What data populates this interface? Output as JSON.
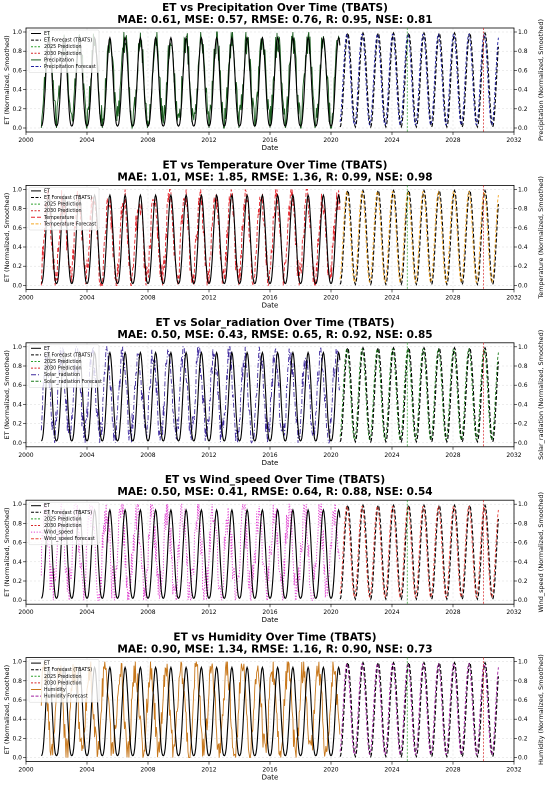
{
  "chart_data": [
    {
      "type": "line",
      "title": "ET vs Precipitation Over Time (TBATS)",
      "metrics": "MAE: 0.61, MSE: 0.57, RMSE: 0.76, R: 0.95, NSE: 0.81",
      "xlabel": "Date",
      "ylabel_left": "ET (Normalized, Smoothed)",
      "ylabel_right": "Precipitation (Normalized, Smoothed)",
      "xlim": [
        2000,
        2032
      ],
      "ylim": [
        0,
        1
      ],
      "x_ticks": [
        "2000",
        "2004",
        "2008",
        "2012",
        "2016",
        "2020",
        "2024",
        "2028",
        "2032"
      ],
      "y_ticks": [
        "0.0",
        "0.2",
        "0.4",
        "0.6",
        "0.8",
        "1.0"
      ],
      "legend_position": "top-left",
      "legend": [
        "ET",
        "ET Forecast (TBATS)",
        "2025 Prediction",
        "2030 Prediction",
        "Precipitation",
        "Precipitation Forecast"
      ],
      "driver_color": "#1b5e20",
      "driver_forecast_color": "#1f1fa0",
      "driver_style": "solid",
      "vlines": [
        {
          "x": 2025.0,
          "label": "2025 Prediction",
          "color": "#2ca02c"
        },
        {
          "x": 2030.0,
          "label": "2030 Prediction",
          "color": "#d62728"
        }
      ],
      "series": {
        "et_period_years": 1.0,
        "et_history_range": [
          2001,
          2020.6
        ],
        "forecast_range": [
          2020.6,
          2031
        ]
      }
    },
    {
      "type": "line",
      "title": "ET vs Temperature Over Time (TBATS)",
      "metrics": "MAE: 1.01, MSE: 1.85, RMSE: 1.36, R: 0.99, NSE: 0.98",
      "xlabel": "Date",
      "ylabel_left": "ET (Normalized, Smoothed)",
      "ylabel_right": "Temperature (Normalized, Smoothed)",
      "xlim": [
        2000,
        2032
      ],
      "ylim": [
        0,
        1
      ],
      "x_ticks": [
        "2000",
        "2004",
        "2008",
        "2012",
        "2016",
        "2020",
        "2024",
        "2028",
        "2032"
      ],
      "y_ticks": [
        "0.0",
        "0.2",
        "0.4",
        "0.6",
        "0.8",
        "1.0"
      ],
      "legend_position": "top-left",
      "legend": [
        "ET",
        "ET Forecast (TBATS)",
        "2025 Prediction",
        "2030 Prediction",
        "Temperature",
        "Temperature Forecast"
      ],
      "driver_color": "#e3242b",
      "driver_forecast_color": "#f5a623",
      "driver_style": "dashed",
      "vlines": [
        {
          "x": 2025.0,
          "label": "2025 Prediction",
          "color": "#2ca02c"
        },
        {
          "x": 2030.0,
          "label": "2030 Prediction",
          "color": "#d62728"
        }
      ],
      "series": {
        "et_period_years": 1.0,
        "et_history_range": [
          2001,
          2020.6
        ],
        "forecast_range": [
          2020.6,
          2031
        ]
      }
    },
    {
      "type": "line",
      "title": "ET vs Solar_radiation Over Time (TBATS)",
      "metrics": "MAE: 0.50, MSE: 0.43, RMSE: 0.65, R: 0.92, NSE: 0.85",
      "xlabel": "Date",
      "ylabel_left": "ET (Normalized, Smoothed)",
      "ylabel_right": "Solar_radiation (Normalized, Smoothed)",
      "xlim": [
        2000,
        2032
      ],
      "ylim": [
        0,
        1
      ],
      "x_ticks": [
        "2000",
        "2004",
        "2008",
        "2012",
        "2016",
        "2020",
        "2024",
        "2028",
        "2032"
      ],
      "y_ticks": [
        "0.0",
        "0.2",
        "0.4",
        "0.6",
        "0.8",
        "1.0"
      ],
      "legend_position": "top-left",
      "legend": [
        "ET",
        "ET Forecast (TBATS)",
        "2025 Prediction",
        "2030 Prediction",
        "Solar_radiation",
        "Solar_radiation Forecast"
      ],
      "driver_color": "#3f2a9e",
      "driver_forecast_color": "#1a7a1a",
      "driver_style": "dashdot",
      "vlines": [
        {
          "x": 2025.0,
          "label": "2025 Prediction",
          "color": "#2ca02c"
        },
        {
          "x": 2030.0,
          "label": "2030 Prediction",
          "color": "#d62728"
        }
      ],
      "series": {
        "et_period_years": 1.0,
        "et_history_range": [
          2001,
          2020.6
        ],
        "forecast_range": [
          2020.6,
          2031
        ]
      }
    },
    {
      "type": "line",
      "title": "ET vs Wind_speed Over Time (TBATS)",
      "metrics": "MAE: 0.50, MSE: 0.41, RMSE: 0.64, R: 0.88, NSE: 0.54",
      "xlabel": "Date",
      "ylabel_left": "ET (Normalized, Smoothed)",
      "ylabel_right": "Wind_speed (Normalized, Smoothed)",
      "xlim": [
        2000,
        2032
      ],
      "ylim": [
        0,
        1
      ],
      "x_ticks": [
        "2000",
        "2004",
        "2008",
        "2012",
        "2016",
        "2020",
        "2024",
        "2028",
        "2032"
      ],
      "y_ticks": [
        "0.0",
        "0.2",
        "0.4",
        "0.6",
        "0.8",
        "1.0"
      ],
      "legend_position": "top-left",
      "legend": [
        "ET",
        "ET Forecast (TBATS)",
        "2025 Prediction",
        "2030 Prediction",
        "Wind_speed",
        "Wind_speed Forecast"
      ],
      "driver_color": "#e040d0",
      "driver_forecast_color": "#e8453c",
      "driver_style": "dotted",
      "vlines": [
        {
          "x": 2025.0,
          "label": "2025 Prediction",
          "color": "#2ca02c"
        },
        {
          "x": 2030.0,
          "label": "2030 Prediction",
          "color": "#d62728"
        }
      ],
      "series": {
        "et_period_years": 1.0,
        "et_history_range": [
          2001,
          2020.6
        ],
        "forecast_range": [
          2020.6,
          2031
        ]
      }
    },
    {
      "type": "line",
      "title": "ET vs Humidity Over Time (TBATS)",
      "metrics": "MAE: 0.90, MSE: 1.34, RMSE: 1.16, R: 0.90, NSE: 0.73",
      "xlabel": "Date",
      "ylabel_left": "ET (Normalized, Smoothed)",
      "ylabel_right": "Humidity (Normalized, Smoothed)",
      "xlim": [
        2000,
        2032
      ],
      "ylim": [
        0,
        1
      ],
      "x_ticks": [
        "2000",
        "2004",
        "2008",
        "2012",
        "2016",
        "2020",
        "2024",
        "2028",
        "2032"
      ],
      "y_ticks": [
        "0.0",
        "0.2",
        "0.4",
        "0.6",
        "0.8",
        "1.0"
      ],
      "legend_position": "top-left",
      "legend": [
        "ET",
        "ET Forecast (TBATS)",
        "2025 Prediction",
        "2030 Prediction",
        "Humidity",
        "Humidity Forecast"
      ],
      "driver_color": "#c8781c",
      "driver_forecast_color": "#a020a0",
      "driver_style": "solid",
      "vlines": [
        {
          "x": 2025.0,
          "label": "2025 Prediction",
          "color": "#2ca02c"
        },
        {
          "x": 2030.0,
          "label": "2030 Prediction",
          "color": "#d62728"
        }
      ],
      "series": {
        "et_period_years": 1.0,
        "et_history_range": [
          2001,
          2020.6
        ],
        "forecast_range": [
          2020.6,
          2031
        ]
      }
    }
  ]
}
